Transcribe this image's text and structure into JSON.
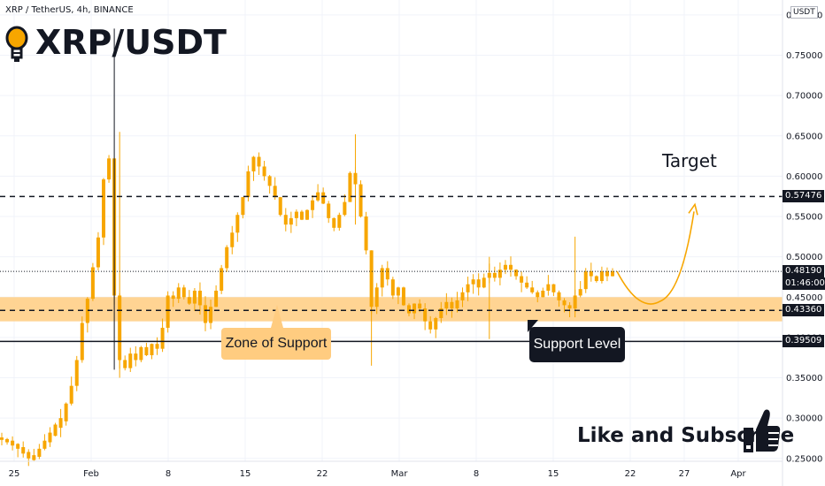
{
  "header": {
    "instrument": "XRP / TetherUS, 4h, BINANCE",
    "title": "XRP/USDT",
    "currency_box": "USDT"
  },
  "annotations": {
    "zone_label": "Zone of Support",
    "support_label": "Support Level",
    "target_label": "Target",
    "subscribe": "Like and Subscribe"
  },
  "colors": {
    "candle": "#f7a600",
    "zone": "#ffcc80",
    "lines": "#131722",
    "arrow": "#f7a600"
  },
  "chart_data": {
    "type": "candlestick",
    "y_ticks": [
      "0.80000",
      "0.75000",
      "0.70000",
      "0.65000",
      "0.60000",
      "0.55000",
      "0.50000",
      "0.45000",
      "0.40000",
      "0.35000",
      "0.30000",
      "0.25000"
    ],
    "y_tick_values": [
      0.8,
      0.75,
      0.7,
      0.65,
      0.6,
      0.55,
      0.5,
      0.45,
      0.4,
      0.35,
      0.3,
      0.25
    ],
    "ylim": [
      0.2158,
      0.8185
    ],
    "x_ticks": [
      "25",
      "Feb",
      "8",
      "15",
      "22",
      "Mar",
      "8",
      "15",
      "22",
      "27",
      "Apr"
    ],
    "price_labels": [
      {
        "value": 0.57476,
        "text": "0.57476",
        "style": "dashed"
      },
      {
        "value": 0.4819,
        "text": "0.48190",
        "sub": "01:46:00",
        "style": "dotted"
      },
      {
        "value": 0.4336,
        "text": "0.43360",
        "style": "dashed"
      },
      {
        "value": 0.39509,
        "text": "0.39509",
        "style": "solid"
      }
    ],
    "support_zone": [
      0.42,
      0.45
    ],
    "price_path": [
      [
        0.273,
        0.276
      ],
      [
        0.27,
        0.274
      ],
      [
        0.266,
        0.272
      ],
      [
        0.262,
        0.268
      ],
      [
        0.256,
        0.264
      ],
      [
        0.25,
        0.258
      ],
      [
        0.248,
        0.254
      ],
      [
        0.252,
        0.262
      ],
      [
        0.262,
        0.272
      ],
      [
        0.27,
        0.282
      ],
      [
        0.278,
        0.292
      ],
      [
        0.288,
        0.3
      ],
      [
        0.296,
        0.318
      ],
      [
        0.318,
        0.34
      ],
      [
        0.34,
        0.372
      ],
      [
        0.372,
        0.418
      ],
      [
        0.418,
        0.448
      ],
      [
        0.448,
        0.487
      ],
      [
        0.487,
        0.524
      ],
      [
        0.524,
        0.596
      ],
      [
        0.596,
        0.622
      ],
      [
        0.622,
        0.452
      ],
      [
        0.452,
        0.372
      ],
      [
        0.372,
        0.362
      ],
      [
        0.362,
        0.38
      ],
      [
        0.38,
        0.372
      ],
      [
        0.372,
        0.388
      ],
      [
        0.388,
        0.378
      ],
      [
        0.378,
        0.392
      ],
      [
        0.392,
        0.386
      ],
      [
        0.386,
        0.412
      ],
      [
        0.412,
        0.452
      ],
      [
        0.452,
        0.448
      ],
      [
        0.448,
        0.462
      ],
      [
        0.462,
        0.45
      ],
      [
        0.45,
        0.442
      ],
      [
        0.442,
        0.458
      ],
      [
        0.458,
        0.44
      ],
      [
        0.44,
        0.418
      ],
      [
        0.418,
        0.438
      ],
      [
        0.438,
        0.458
      ],
      [
        0.458,
        0.486
      ],
      [
        0.486,
        0.512
      ],
      [
        0.512,
        0.53
      ],
      [
        0.53,
        0.552
      ],
      [
        0.552,
        0.574
      ],
      [
        0.574,
        0.606
      ],
      [
        0.606,
        0.624
      ],
      [
        0.624,
        0.612
      ],
      [
        0.612,
        0.6
      ],
      [
        0.6,
        0.588
      ],
      [
        0.588,
        0.574
      ],
      [
        0.574,
        0.552
      ],
      [
        0.552,
        0.54
      ],
      [
        0.54,
        0.548
      ],
      [
        0.548,
        0.556
      ],
      [
        0.556,
        0.546
      ],
      [
        0.546,
        0.558
      ],
      [
        0.558,
        0.57
      ],
      [
        0.57,
        0.58
      ],
      [
        0.58,
        0.566
      ],
      [
        0.566,
        0.548
      ],
      [
        0.548,
        0.536
      ],
      [
        0.536,
        0.552
      ],
      [
        0.552,
        0.568
      ],
      [
        0.568,
        0.604
      ],
      [
        0.604,
        0.59
      ],
      [
        0.59,
        0.55
      ],
      [
        0.55,
        0.508
      ],
      [
        0.508,
        0.438
      ],
      [
        0.438,
        0.462
      ],
      [
        0.462,
        0.486
      ],
      [
        0.486,
        0.472
      ],
      [
        0.472,
        0.452
      ],
      [
        0.452,
        0.462
      ],
      [
        0.462,
        0.44
      ],
      [
        0.44,
        0.43
      ],
      [
        0.43,
        0.442
      ],
      [
        0.442,
        0.436
      ],
      [
        0.436,
        0.42
      ],
      [
        0.42,
        0.41
      ],
      [
        0.41,
        0.424
      ],
      [
        0.424,
        0.436
      ],
      [
        0.436,
        0.444
      ],
      [
        0.444,
        0.436
      ],
      [
        0.436,
        0.446
      ],
      [
        0.446,
        0.456
      ],
      [
        0.456,
        0.466
      ],
      [
        0.466,
        0.472
      ],
      [
        0.472,
        0.462
      ],
      [
        0.462,
        0.474
      ],
      [
        0.474,
        0.48
      ],
      [
        0.48,
        0.474
      ],
      [
        0.474,
        0.484
      ],
      [
        0.484,
        0.49
      ],
      [
        0.49,
        0.484
      ],
      [
        0.484,
        0.476
      ],
      [
        0.476,
        0.468
      ],
      [
        0.468,
        0.462
      ],
      [
        0.462,
        0.456
      ],
      [
        0.456,
        0.45
      ],
      [
        0.45,
        0.458
      ],
      [
        0.458,
        0.466
      ],
      [
        0.466,
        0.456
      ],
      [
        0.456,
        0.446
      ],
      [
        0.446,
        0.44
      ],
      [
        0.44,
        0.436
      ],
      [
        0.436,
        0.452
      ],
      [
        0.452,
        0.46
      ],
      [
        0.46,
        0.482
      ],
      [
        0.482,
        0.476
      ],
      [
        0.476,
        0.47
      ],
      [
        0.47,
        0.482
      ],
      [
        0.482,
        0.476
      ],
      [
        0.476,
        0.482
      ]
    ],
    "target_value": 0.565
  }
}
